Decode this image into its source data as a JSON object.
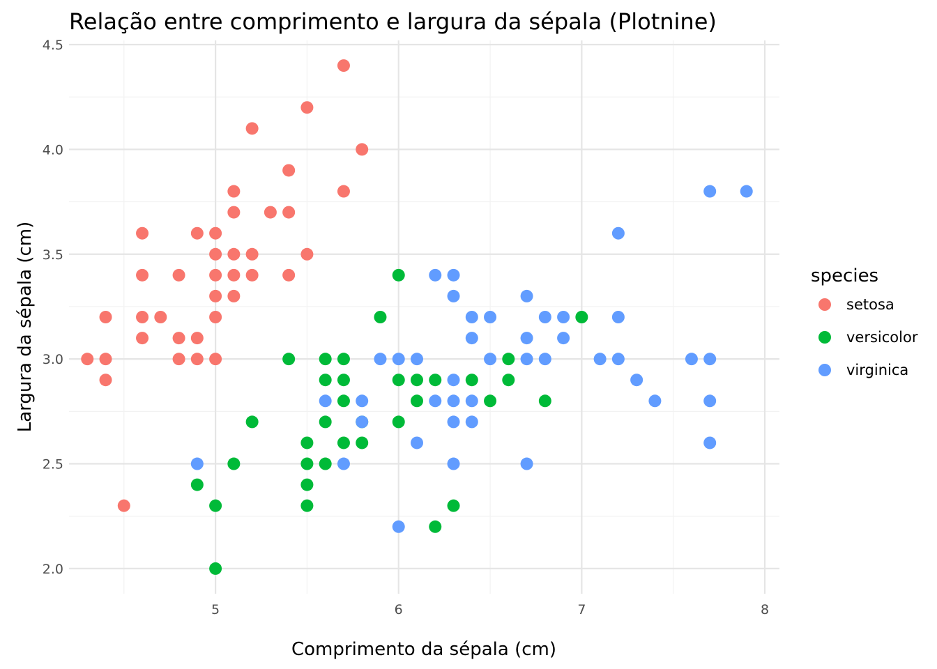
{
  "chart_data": {
    "type": "scatter",
    "title": "Relação entre comprimento e largura da sépala (Plotnine)",
    "xlabel": "Comprimento da sépala (cm)",
    "ylabel": "Largura da sépala (cm)",
    "xlim": [
      4.2,
      8.08
    ],
    "ylim": [
      1.88,
      4.52
    ],
    "x_ticks": [
      5,
      6,
      7,
      8
    ],
    "y_ticks": [
      2.0,
      2.5,
      3.0,
      3.5,
      4.0,
      4.5
    ],
    "x_tick_labels": [
      "5",
      "6",
      "7",
      "8"
    ],
    "y_tick_labels": [
      "2.0",
      "2.5",
      "3.0",
      "3.5",
      "4.0",
      "4.5"
    ],
    "grid": true,
    "legend": {
      "title": "species",
      "position": "right"
    },
    "series": [
      {
        "name": "setosa",
        "color": "#F8766D",
        "points": [
          [
            4.3,
            3.0
          ],
          [
            4.4,
            3.0
          ],
          [
            4.4,
            2.9
          ],
          [
            4.4,
            3.2
          ],
          [
            4.5,
            2.3
          ],
          [
            4.6,
            3.6
          ],
          [
            4.6,
            3.4
          ],
          [
            4.6,
            3.2
          ],
          [
            4.6,
            3.1
          ],
          [
            4.7,
            3.2
          ],
          [
            4.8,
            3.4
          ],
          [
            4.8,
            3.1
          ],
          [
            4.8,
            3.0
          ],
          [
            4.9,
            3.6
          ],
          [
            4.9,
            3.1
          ],
          [
            4.9,
            3.0
          ],
          [
            5.0,
            3.6
          ],
          [
            5.0,
            3.5
          ],
          [
            5.0,
            3.4
          ],
          [
            5.0,
            3.3
          ],
          [
            5.0,
            3.2
          ],
          [
            5.0,
            3.0
          ],
          [
            5.1,
            3.8
          ],
          [
            5.1,
            3.7
          ],
          [
            5.1,
            3.5
          ],
          [
            5.1,
            3.4
          ],
          [
            5.1,
            3.3
          ],
          [
            5.2,
            4.1
          ],
          [
            5.2,
            3.5
          ],
          [
            5.2,
            3.4
          ],
          [
            5.3,
            3.7
          ],
          [
            5.4,
            3.9
          ],
          [
            5.4,
            3.7
          ],
          [
            5.4,
            3.4
          ],
          [
            5.5,
            4.2
          ],
          [
            5.5,
            3.5
          ],
          [
            5.7,
            4.4
          ],
          [
            5.7,
            3.8
          ],
          [
            5.8,
            4.0
          ]
        ]
      },
      {
        "name": "versicolor",
        "color": "#00BA38",
        "points": [
          [
            4.9,
            2.4
          ],
          [
            5.0,
            2.0
          ],
          [
            5.0,
            2.3
          ],
          [
            5.1,
            2.5
          ],
          [
            5.2,
            2.7
          ],
          [
            5.4,
            3.0
          ],
          [
            5.5,
            2.3
          ],
          [
            5.5,
            2.4
          ],
          [
            5.5,
            2.5
          ],
          [
            5.5,
            2.6
          ],
          [
            5.6,
            3.0
          ],
          [
            5.6,
            2.9
          ],
          [
            5.6,
            2.7
          ],
          [
            5.6,
            2.5
          ],
          [
            5.7,
            3.0
          ],
          [
            5.7,
            2.9
          ],
          [
            5.7,
            2.8
          ],
          [
            5.7,
            2.6
          ],
          [
            5.8,
            2.7
          ],
          [
            5.8,
            2.6
          ],
          [
            5.9,
            3.2
          ],
          [
            6.0,
            3.4
          ],
          [
            6.0,
            2.9
          ],
          [
            6.0,
            2.7
          ],
          [
            6.1,
            2.9
          ],
          [
            6.1,
            2.8
          ],
          [
            6.2,
            2.9
          ],
          [
            6.2,
            2.2
          ],
          [
            6.3,
            2.3
          ],
          [
            6.4,
            2.9
          ],
          [
            6.5,
            2.8
          ],
          [
            6.6,
            3.0
          ],
          [
            6.6,
            2.9
          ],
          [
            6.8,
            2.8
          ],
          [
            7.0,
            3.2
          ]
        ]
      },
      {
        "name": "virginica",
        "color": "#619CFF",
        "points": [
          [
            4.9,
            2.5
          ],
          [
            5.6,
            2.8
          ],
          [
            5.7,
            2.5
          ],
          [
            5.8,
            2.8
          ],
          [
            5.8,
            2.7
          ],
          [
            5.9,
            3.0
          ],
          [
            6.0,
            3.0
          ],
          [
            6.0,
            2.2
          ],
          [
            6.1,
            3.0
          ],
          [
            6.1,
            2.6
          ],
          [
            6.2,
            3.4
          ],
          [
            6.2,
            2.8
          ],
          [
            6.3,
            3.4
          ],
          [
            6.3,
            3.3
          ],
          [
            6.3,
            2.9
          ],
          [
            6.3,
            2.8
          ],
          [
            6.3,
            2.7
          ],
          [
            6.3,
            2.5
          ],
          [
            6.4,
            3.2
          ],
          [
            6.4,
            3.1
          ],
          [
            6.4,
            2.8
          ],
          [
            6.4,
            2.7
          ],
          [
            6.5,
            3.2
          ],
          [
            6.5,
            3.0
          ],
          [
            6.7,
            3.3
          ],
          [
            6.7,
            3.1
          ],
          [
            6.7,
            3.0
          ],
          [
            6.7,
            2.5
          ],
          [
            6.8,
            3.2
          ],
          [
            6.8,
            3.0
          ],
          [
            6.9,
            3.2
          ],
          [
            6.9,
            3.1
          ],
          [
            7.1,
            3.0
          ],
          [
            7.2,
            3.6
          ],
          [
            7.2,
            3.2
          ],
          [
            7.2,
            3.0
          ],
          [
            7.3,
            2.9
          ],
          [
            7.4,
            2.8
          ],
          [
            7.6,
            3.0
          ],
          [
            7.7,
            3.8
          ],
          [
            7.7,
            3.0
          ],
          [
            7.7,
            2.8
          ],
          [
            7.7,
            2.6
          ],
          [
            7.9,
            3.8
          ]
        ]
      }
    ]
  }
}
